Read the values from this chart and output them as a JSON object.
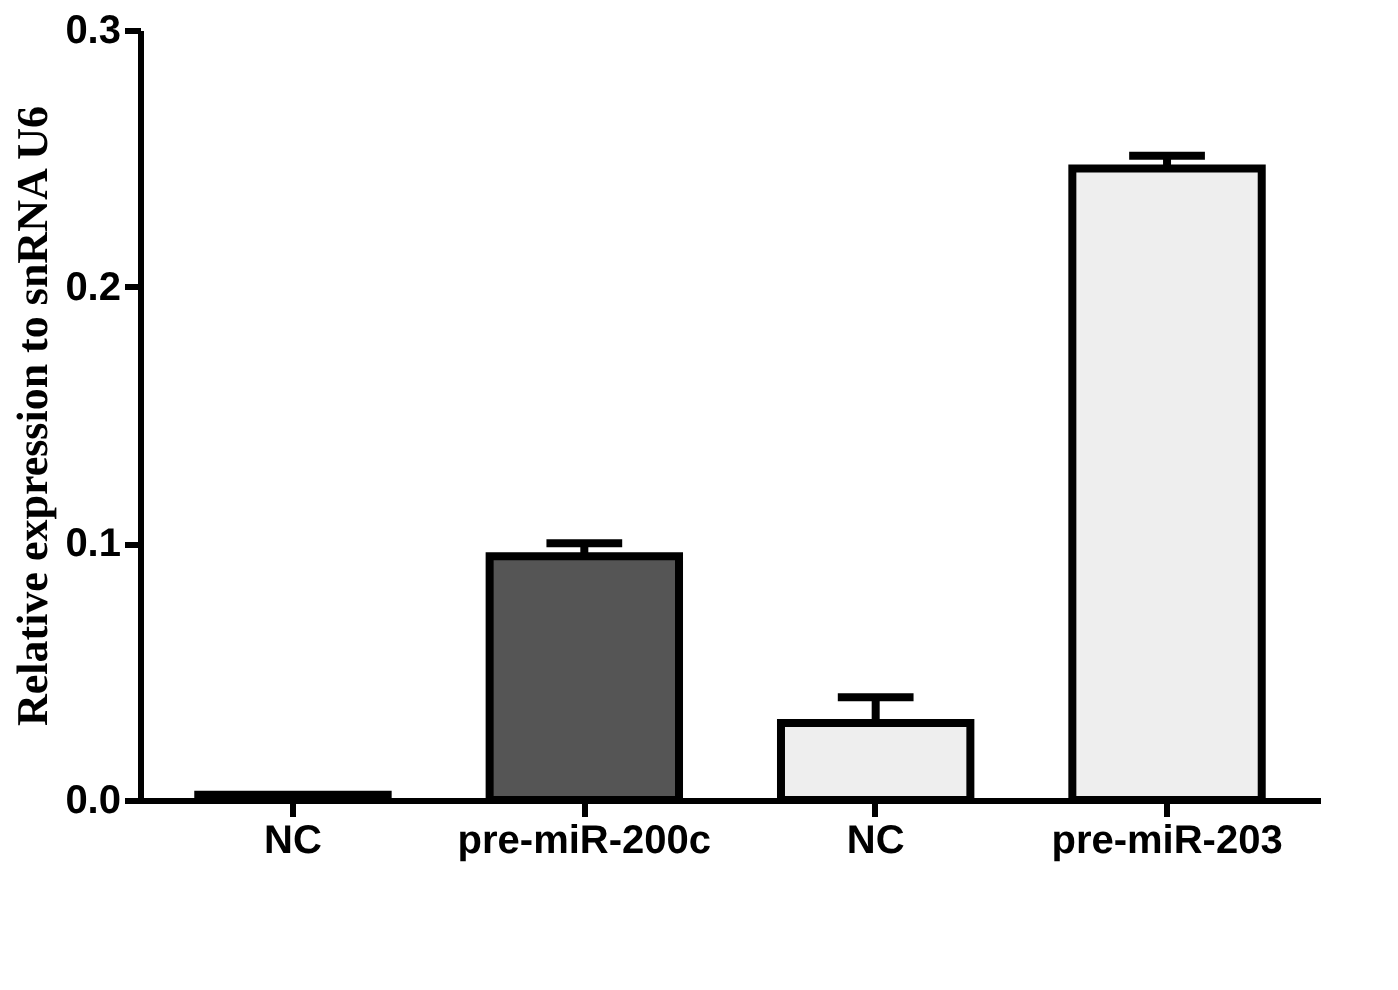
{
  "chart_data": {
    "type": "bar",
    "ylabel": "Relative expression to snRNA U6",
    "categories": [
      "NC",
      "pre-miR-200c",
      "NC",
      "pre-miR-203"
    ],
    "values": [
      0.002,
      0.095,
      0.03,
      0.246
    ],
    "errors": [
      null,
      0.005,
      0.01,
      0.005
    ],
    "colors": [
      "#333333",
      "#555555",
      "#eeeeee",
      "#eeeeee"
    ],
    "ylim": [
      0,
      0.3
    ],
    "yticks": [
      {
        "value": 0,
        "label": "0.0"
      },
      0.1,
      0.2,
      0.3
    ],
    "grid": false
  }
}
